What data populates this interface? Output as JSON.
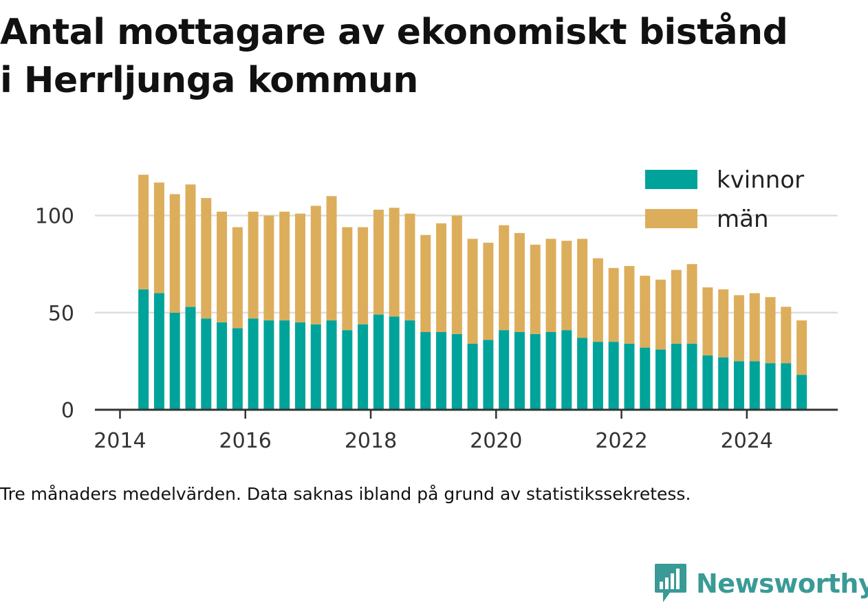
{
  "title_lines": [
    "Antal mottagare av ekonomiskt bistånd",
    "i Herrljunga kommun"
  ],
  "note": "Tre månaders medelvärden. Data saknas ibland på grund av statistikssekretess.",
  "brand": {
    "name": "Newsworthy",
    "icon": "chat-bar-chart-icon",
    "color": "#3a9a96"
  },
  "colors": {
    "kvinnor": "#00a39a",
    "man": "#dcae5c",
    "grid": "#dddddd",
    "axis": "#333333"
  },
  "chart_data": {
    "type": "bar",
    "stacked": true,
    "xlabel": "",
    "ylabel": "",
    "y_ticks": [
      0,
      50,
      100
    ],
    "ylim": [
      0,
      122
    ],
    "x_ticks": [
      "2014",
      "2016",
      "2018",
      "2020",
      "2022",
      "2024"
    ],
    "x_tick_years": [
      2014,
      2016,
      2018,
      2020,
      2022,
      2024
    ],
    "x_range": [
      2013.6,
      2025.45
    ],
    "grid": "horizontal",
    "legend_position": "top-right",
    "categories": [
      "2014-Q2",
      "2014-Q3",
      "2014-Q4",
      "2015-Q1",
      "2015-Q2",
      "2015-Q3",
      "2015-Q4",
      "2016-Q1",
      "2016-Q2",
      "2016-Q3",
      "2016-Q4",
      "2017-Q1",
      "2017-Q2",
      "2017-Q3",
      "2017-Q4",
      "2018-Q1",
      "2018-Q2",
      "2018-Q3",
      "2018-Q4",
      "2019-Q1",
      "2019-Q2",
      "2019-Q3",
      "2019-Q4",
      "2020-Q1",
      "2020-Q2",
      "2020-Q3",
      "2020-Q4",
      "2021-Q1",
      "2021-Q2",
      "2021-Q3",
      "2021-Q4",
      "2022-Q1",
      "2022-Q2",
      "2022-Q3",
      "2022-Q4",
      "2023-Q1",
      "2023-Q2",
      "2023-Q3",
      "2023-Q4",
      "2024-Q1",
      "2024-Q2",
      "2024-Q3",
      "2024-Q4"
    ],
    "series": [
      {
        "name": "kvinnor",
        "values": [
          62,
          60,
          50,
          53,
          47,
          45,
          42,
          47,
          46,
          46,
          45,
          44,
          46,
          41,
          44,
          49,
          48,
          46,
          40,
          40,
          39,
          34,
          36,
          41,
          40,
          39,
          40,
          41,
          37,
          35,
          35,
          34,
          32,
          31,
          34,
          34,
          28,
          27,
          25,
          25,
          24,
          24,
          18
        ]
      },
      {
        "name": "män",
        "values": [
          59,
          57,
          61,
          63,
          62,
          57,
          52,
          55,
          54,
          56,
          56,
          61,
          64,
          53,
          50,
          54,
          56,
          55,
          50,
          56,
          61,
          54,
          50,
          54,
          51,
          46,
          48,
          46,
          51,
          43,
          38,
          40,
          37,
          36,
          38,
          41,
          35,
          35,
          34,
          35,
          34,
          29,
          28
        ]
      }
    ]
  }
}
